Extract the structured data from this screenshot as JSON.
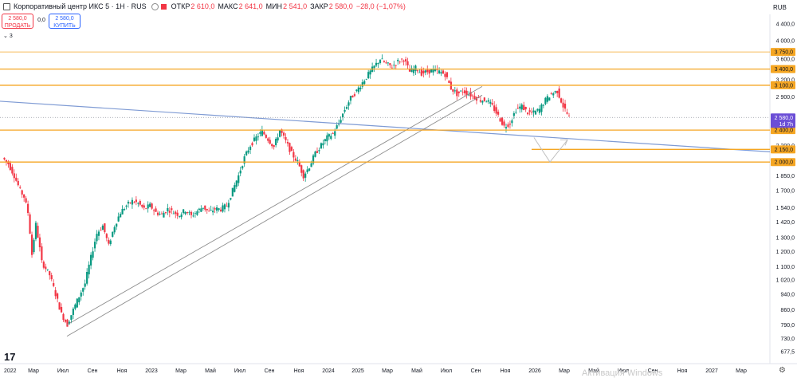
{
  "header": {
    "title": "Корпоративный центр ИКС 5 · 1Н · RUS",
    "open_label": "ОТКР",
    "open": "2 610,0",
    "high_label": "МАКС",
    "high": "2 641,0",
    "low_label": "МИН",
    "low": "2 541,0",
    "close_label": "ЗАКР",
    "close": "2 580,0",
    "change": "−28,0 (−1,07%)"
  },
  "trade": {
    "sell_price": "2 580,0",
    "sell_label": "ПРОДАТЬ",
    "spread": "0,0",
    "buy_price": "2 580,0",
    "buy_label": "КУПИТЬ"
  },
  "indicators_toggle": "3",
  "currency": "RUB",
  "tv_logo": "17",
  "watermark": "Активация Windows",
  "colors": {
    "up": "#089981",
    "down": "#f23645",
    "level": "#f5a623",
    "trend": "#7f9bd4",
    "channel": "#8c8c8c"
  },
  "chart_data": {
    "type": "candlestick",
    "scale": "log",
    "ylim": [
      677.5,
      4400
    ],
    "y_ticks": [
      "4 400,0",
      "4 000,0",
      "3 600,0",
      "3 200,0",
      "2 900,0",
      "2 580,0",
      "2 200,0",
      "2 000,0",
      "1 850,0",
      "1 700,0",
      "1 540,0",
      "1 420,0",
      "1 300,0",
      "1 200,0",
      "1 100,0",
      "1 020,0",
      "940,0",
      "860,0",
      "790,0",
      "730,0",
      "677,5"
    ],
    "x_labels": [
      "2022",
      "Мар",
      "Июл",
      "Сен",
      "Ноя",
      "2023",
      "Мар",
      "Май",
      "Июл",
      "Сен",
      "Ноя",
      "2024",
      "2025",
      "Мар",
      "Май",
      "Июл",
      "Сен",
      "Ноя",
      "2026",
      "Мар",
      "Май",
      "Июл",
      "Сен",
      "Ноя",
      "2027",
      "Мар"
    ],
    "current_price": "2 580,0",
    "countdown": "1d 7h",
    "levels": [
      {
        "value": 3750,
        "label": "3 750,0"
      },
      {
        "value": 3400,
        "label": "3 400,0"
      },
      {
        "value": 3100,
        "label": "3 100,0"
      },
      {
        "value": 2400,
        "label": "2 400,0"
      },
      {
        "value": 2150,
        "label": "2 150,0"
      },
      {
        "value": 2000,
        "label": "2 000,0"
      }
    ],
    "anchors": [
      [
        0,
        2050
      ],
      [
        3,
        1980
      ],
      [
        6,
        1850
      ],
      [
        9,
        1700
      ],
      [
        11,
        1640
      ],
      [
        13,
        1500
      ],
      [
        15,
        1180
      ],
      [
        17,
        1400
      ],
      [
        20,
        1130
      ],
      [
        24,
        1050
      ],
      [
        27,
        940
      ],
      [
        30,
        840
      ],
      [
        33,
        790
      ],
      [
        36,
        860
      ],
      [
        39,
        930
      ],
      [
        42,
        1000
      ],
      [
        45,
        1160
      ],
      [
        48,
        1330
      ],
      [
        51,
        1390
      ],
      [
        54,
        1240
      ],
      [
        57,
        1390
      ],
      [
        60,
        1500
      ],
      [
        63,
        1560
      ],
      [
        66,
        1600
      ],
      [
        69,
        1580
      ],
      [
        72,
        1530
      ],
      [
        75,
        1560
      ],
      [
        78,
        1500
      ],
      [
        81,
        1480
      ],
      [
        84,
        1530
      ],
      [
        87,
        1500
      ],
      [
        90,
        1480
      ],
      [
        93,
        1520
      ],
      [
        96,
        1470
      ],
      [
        99,
        1510
      ],
      [
        102,
        1550
      ],
      [
        105,
        1500
      ],
      [
        108,
        1530
      ],
      [
        111,
        1530
      ],
      [
        114,
        1560
      ],
      [
        117,
        1700
      ],
      [
        120,
        1850
      ],
      [
        123,
        2050
      ],
      [
        126,
        2200
      ],
      [
        129,
        2300
      ],
      [
        132,
        2380
      ],
      [
        135,
        2280
      ],
      [
        138,
        2180
      ],
      [
        141,
        2400
      ],
      [
        144,
        2250
      ],
      [
        147,
        2100
      ],
      [
        150,
        2000
      ],
      [
        153,
        1850
      ],
      [
        156,
        1950
      ],
      [
        159,
        2100
      ],
      [
        162,
        2200
      ],
      [
        165,
        2300
      ],
      [
        168,
        2350
      ],
      [
        171,
        2500
      ],
      [
        174,
        2700
      ],
      [
        177,
        2880
      ],
      [
        180,
        3000
      ],
      [
        183,
        3150
      ],
      [
        186,
        3300
      ],
      [
        189,
        3450
      ],
      [
        192,
        3600
      ],
      [
        195,
        3500
      ],
      [
        198,
        3450
      ],
      [
        201,
        3550
      ],
      [
        204,
        3600
      ],
      [
        207,
        3350
      ],
      [
        210,
        3420
      ],
      [
        213,
        3320
      ],
      [
        216,
        3350
      ],
      [
        219,
        3380
      ],
      [
        222,
        3350
      ],
      [
        225,
        3300
      ],
      [
        228,
        3050
      ],
      [
        231,
        2950
      ],
      [
        234,
        3000
      ],
      [
        237,
        2950
      ],
      [
        240,
        2900
      ],
      [
        243,
        2850
      ],
      [
        246,
        2850
      ],
      [
        249,
        2750
      ],
      [
        252,
        2600
      ],
      [
        255,
        2450
      ],
      [
        258,
        2500
      ],
      [
        261,
        2700
      ],
      [
        264,
        2750
      ],
      [
        267,
        2650
      ],
      [
        270,
        2650
      ],
      [
        273,
        2700
      ],
      [
        276,
        2850
      ],
      [
        279,
        2950
      ],
      [
        282,
        3000
      ],
      [
        285,
        2750
      ],
      [
        288,
        2580
      ]
    ]
  }
}
